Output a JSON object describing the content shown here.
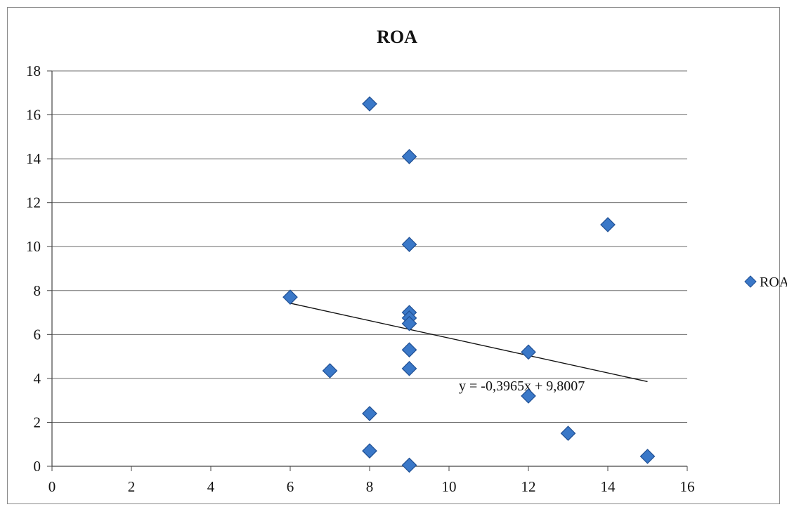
{
  "chart_data": {
    "type": "scatter",
    "title": "ROA",
    "xlabel": "",
    "ylabel": "",
    "xlim": [
      0,
      16
    ],
    "ylim": [
      0,
      18
    ],
    "x_ticks": [
      "0",
      "2",
      "4",
      "6",
      "8",
      "10",
      "12",
      "14",
      "16"
    ],
    "y_ticks": [
      "0",
      "2",
      "4",
      "6",
      "8",
      "10",
      "12",
      "14",
      "16",
      "18"
    ],
    "grid": "horizontal",
    "legend_position": "right",
    "series": [
      {
        "name": "ROA",
        "color": "#3a78c8",
        "marker": "diamond",
        "points": [
          {
            "x": 6,
            "y": 7.7
          },
          {
            "x": 7,
            "y": 4.35
          },
          {
            "x": 8,
            "y": 16.5
          },
          {
            "x": 8,
            "y": 2.4
          },
          {
            "x": 8,
            "y": 0.7
          },
          {
            "x": 9,
            "y": 14.1
          },
          {
            "x": 9,
            "y": 10.1
          },
          {
            "x": 9,
            "y": 7.0
          },
          {
            "x": 9,
            "y": 6.75
          },
          {
            "x": 9,
            "y": 6.5
          },
          {
            "x": 9,
            "y": 5.3
          },
          {
            "x": 9,
            "y": 4.45
          },
          {
            "x": 9,
            "y": 0.05
          },
          {
            "x": 12,
            "y": 5.2
          },
          {
            "x": 12,
            "y": 3.2
          },
          {
            "x": 13,
            "y": 1.5
          },
          {
            "x": 14,
            "y": 11.0
          },
          {
            "x": 15,
            "y": 0.45
          }
        ]
      }
    ],
    "trendline": {
      "type": "linear",
      "slope": -0.3965,
      "intercept": 9.8007,
      "x_range": [
        6,
        15
      ],
      "equation_label": "y = -0,3965x + 9,8007"
    }
  }
}
